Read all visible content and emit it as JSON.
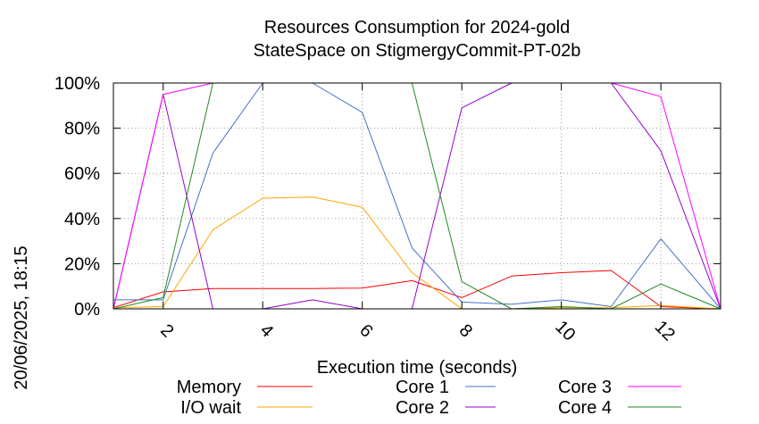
{
  "chart_data": {
    "type": "line",
    "title": "Resources Consumption for 2024-gold",
    "subtitle": "StateSpace on StigmergyCommit-PT-02b",
    "xlabel": "Execution time (seconds)",
    "ylabel": "",
    "side_label": "20/06/2025, 18:15",
    "xlim": [
      1,
      13.2
    ],
    "ylim": [
      0,
      100
    ],
    "x_ticks": [
      2,
      4,
      6,
      8,
      10,
      12
    ],
    "y_ticks": [
      {
        "value": 0,
        "label": "0%"
      },
      {
        "value": 20,
        "label": "20%"
      },
      {
        "value": 40,
        "label": "40%"
      },
      {
        "value": 60,
        "label": "60%"
      },
      {
        "value": 80,
        "label": "80%"
      },
      {
        "value": 100,
        "label": "100%"
      }
    ],
    "grid": true,
    "legend_position": "bottom",
    "x": [
      1,
      2,
      3,
      4,
      5,
      6,
      7,
      8,
      9,
      10,
      11,
      12,
      13.2
    ],
    "series": [
      {
        "name": "Memory",
        "color": "#ff0000",
        "values": [
          0.5,
          7.5,
          9,
          9,
          9,
          9.2,
          12.5,
          5,
          14.5,
          16,
          17,
          1,
          0
        ]
      },
      {
        "name": "I/O wait",
        "color": "#ffa500",
        "values": [
          0.5,
          1,
          35,
          49,
          49.5,
          45,
          16,
          0,
          0,
          0.5,
          0.5,
          1.5,
          0
        ]
      },
      {
        "name": "Core 1",
        "color": "#4472c4",
        "values": [
          4,
          4,
          69,
          100,
          100,
          87,
          27,
          3,
          2,
          4,
          1,
          31,
          0
        ]
      },
      {
        "name": "Core 2",
        "color": "#9400d3",
        "values": [
          0,
          95,
          0,
          0,
          4,
          0,
          0,
          89,
          100,
          100,
          100,
          70,
          0
        ]
      },
      {
        "name": "Core 3",
        "color": "#ff00ff",
        "values": [
          0,
          95,
          100,
          100,
          100,
          100,
          100,
          100,
          100,
          100,
          100,
          94,
          0
        ]
      },
      {
        "name": "Core 4",
        "color": "#228b22",
        "values": [
          0,
          5,
          100,
          100,
          100,
          100,
          100,
          12,
          0,
          1,
          0,
          11,
          0
        ]
      }
    ]
  }
}
